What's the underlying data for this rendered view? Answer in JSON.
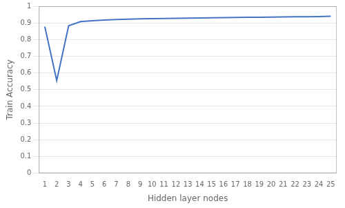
{
  "chart_data": {
    "type": "line",
    "x": [
      1,
      2,
      3,
      4,
      5,
      6,
      7,
      8,
      9,
      10,
      11,
      12,
      13,
      14,
      15,
      16,
      17,
      18,
      19,
      20,
      21,
      22,
      23,
      24,
      25
    ],
    "values": [
      0.878,
      0.555,
      0.883,
      0.908,
      0.913,
      0.917,
      0.92,
      0.922,
      0.924,
      0.926,
      0.927,
      0.928,
      0.929,
      0.93,
      0.931,
      0.932,
      0.933,
      0.934,
      0.934,
      0.935,
      0.936,
      0.937,
      0.937,
      0.938,
      0.94
    ],
    "color": "#4472C4",
    "xlabel": "Hidden layer nodes",
    "ylabel": "Train Accuracy",
    "xlim": [
      0.5,
      25.5
    ],
    "ylim": [
      0,
      1.0
    ],
    "xticks": [
      1,
      2,
      3,
      4,
      5,
      6,
      7,
      8,
      9,
      10,
      11,
      12,
      13,
      14,
      15,
      16,
      17,
      18,
      19,
      20,
      21,
      22,
      23,
      24,
      25
    ],
    "yticks": [
      0,
      0.1,
      0.2,
      0.3,
      0.4,
      0.5,
      0.6,
      0.7,
      0.8,
      0.9,
      1
    ],
    "grid": "y"
  }
}
